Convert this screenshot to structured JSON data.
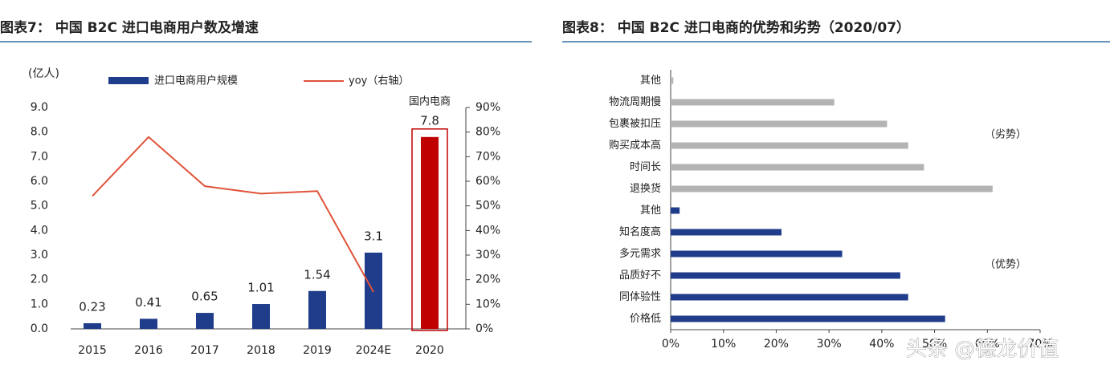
{
  "chart_data": [
    {
      "type": "bar",
      "title": "图表7： 中国 B2C 进口电商用户数及增速",
      "y_label": "(亿人)",
      "categories": [
        "2015",
        "2016",
        "2017",
        "2018",
        "2019",
        "2024E",
        "2020"
      ],
      "series": [
        {
          "name": "进口电商用户规模",
          "type": "bar",
          "color": "#1f3d8a",
          "point_colors": [
            "#1f3d8a",
            "#1f3d8a",
            "#1f3d8a",
            "#1f3d8a",
            "#1f3d8a",
            "#1f3d8a",
            "#c00000"
          ],
          "values": [
            0.23,
            0.41,
            0.65,
            1.01,
            1.54,
            3.1,
            7.8
          ]
        },
        {
          "name": "yoy（右轴）",
          "type": "line",
          "axis": "y2",
          "color": "#e0533a",
          "values": [
            54,
            78,
            58,
            55,
            56,
            15,
            null
          ]
        }
      ],
      "annotations": [
        {
          "text": "国内电商",
          "category": "2020"
        }
      ],
      "ylim": [
        0,
        9
      ],
      "yticks": [
        {
          "value": 0,
          "label": "0.0"
        },
        {
          "value": 1,
          "label": "1.0"
        },
        {
          "value": 2,
          "label": "2.0"
        },
        {
          "value": 3,
          "label": "3.0"
        },
        {
          "value": 4,
          "label": "4.0"
        },
        {
          "value": 5,
          "label": "5.0"
        },
        {
          "value": 6,
          "label": "6.0"
        },
        {
          "value": 7,
          "label": "7.0"
        },
        {
          "value": 8,
          "label": "8.0"
        },
        {
          "value": 9,
          "label": "9.0"
        }
      ],
      "y2lim": [
        0,
        90
      ],
      "y2ticks": [
        {
          "value": 0,
          "label": "0%"
        },
        {
          "value": 10,
          "label": "10%"
        },
        {
          "value": 20,
          "label": "20%"
        },
        {
          "value": 30,
          "label": "30%"
        },
        {
          "value": 40,
          "label": "40%"
        },
        {
          "value": 50,
          "label": "50%"
        },
        {
          "value": 60,
          "label": "60%"
        },
        {
          "value": 70,
          "label": "70%"
        },
        {
          "value": 80,
          "label": "80%"
        },
        {
          "value": 90,
          "label": "90%"
        }
      ]
    },
    {
      "type": "hbar",
      "title": "图表8： 中国 B2C 进口电商的优势和劣势（2020/07）",
      "categories": [
        "其他",
        "物流周期慢",
        "包裹被扣压",
        "购买成本高",
        "时间长",
        "退换货",
        "其他",
        "知名度高",
        "多元需求",
        "品质好不",
        "同体验性",
        "价格低"
      ],
      "values": [
        0.5,
        31,
        41,
        45,
        48,
        61,
        1.7,
        21,
        32.5,
        43.5,
        45,
        52
      ],
      "colors": [
        "#b3b3b3",
        "#b3b3b3",
        "#b3b3b3",
        "#b3b3b3",
        "#b3b3b3",
        "#b3b3b3",
        "#1f3d8a",
        "#1f3d8a",
        "#1f3d8a",
        "#1f3d8a",
        "#1f3d8a",
        "#1f3d8a"
      ],
      "annotations": [
        "（劣势）",
        "（优势）"
      ],
      "xlim": [
        0,
        70
      ],
      "xticks": [
        {
          "value": 0,
          "label": "0%"
        },
        {
          "value": 10,
          "label": "10%"
        },
        {
          "value": 20,
          "label": "20%"
        },
        {
          "value": 30,
          "label": "30%"
        },
        {
          "value": 40,
          "label": "40%"
        },
        {
          "value": 50,
          "label": "50%"
        },
        {
          "value": 60,
          "label": "60%"
        },
        {
          "value": 70,
          "label": "70%"
        }
      ]
    }
  ],
  "watermark": "头条 @德龙价值"
}
